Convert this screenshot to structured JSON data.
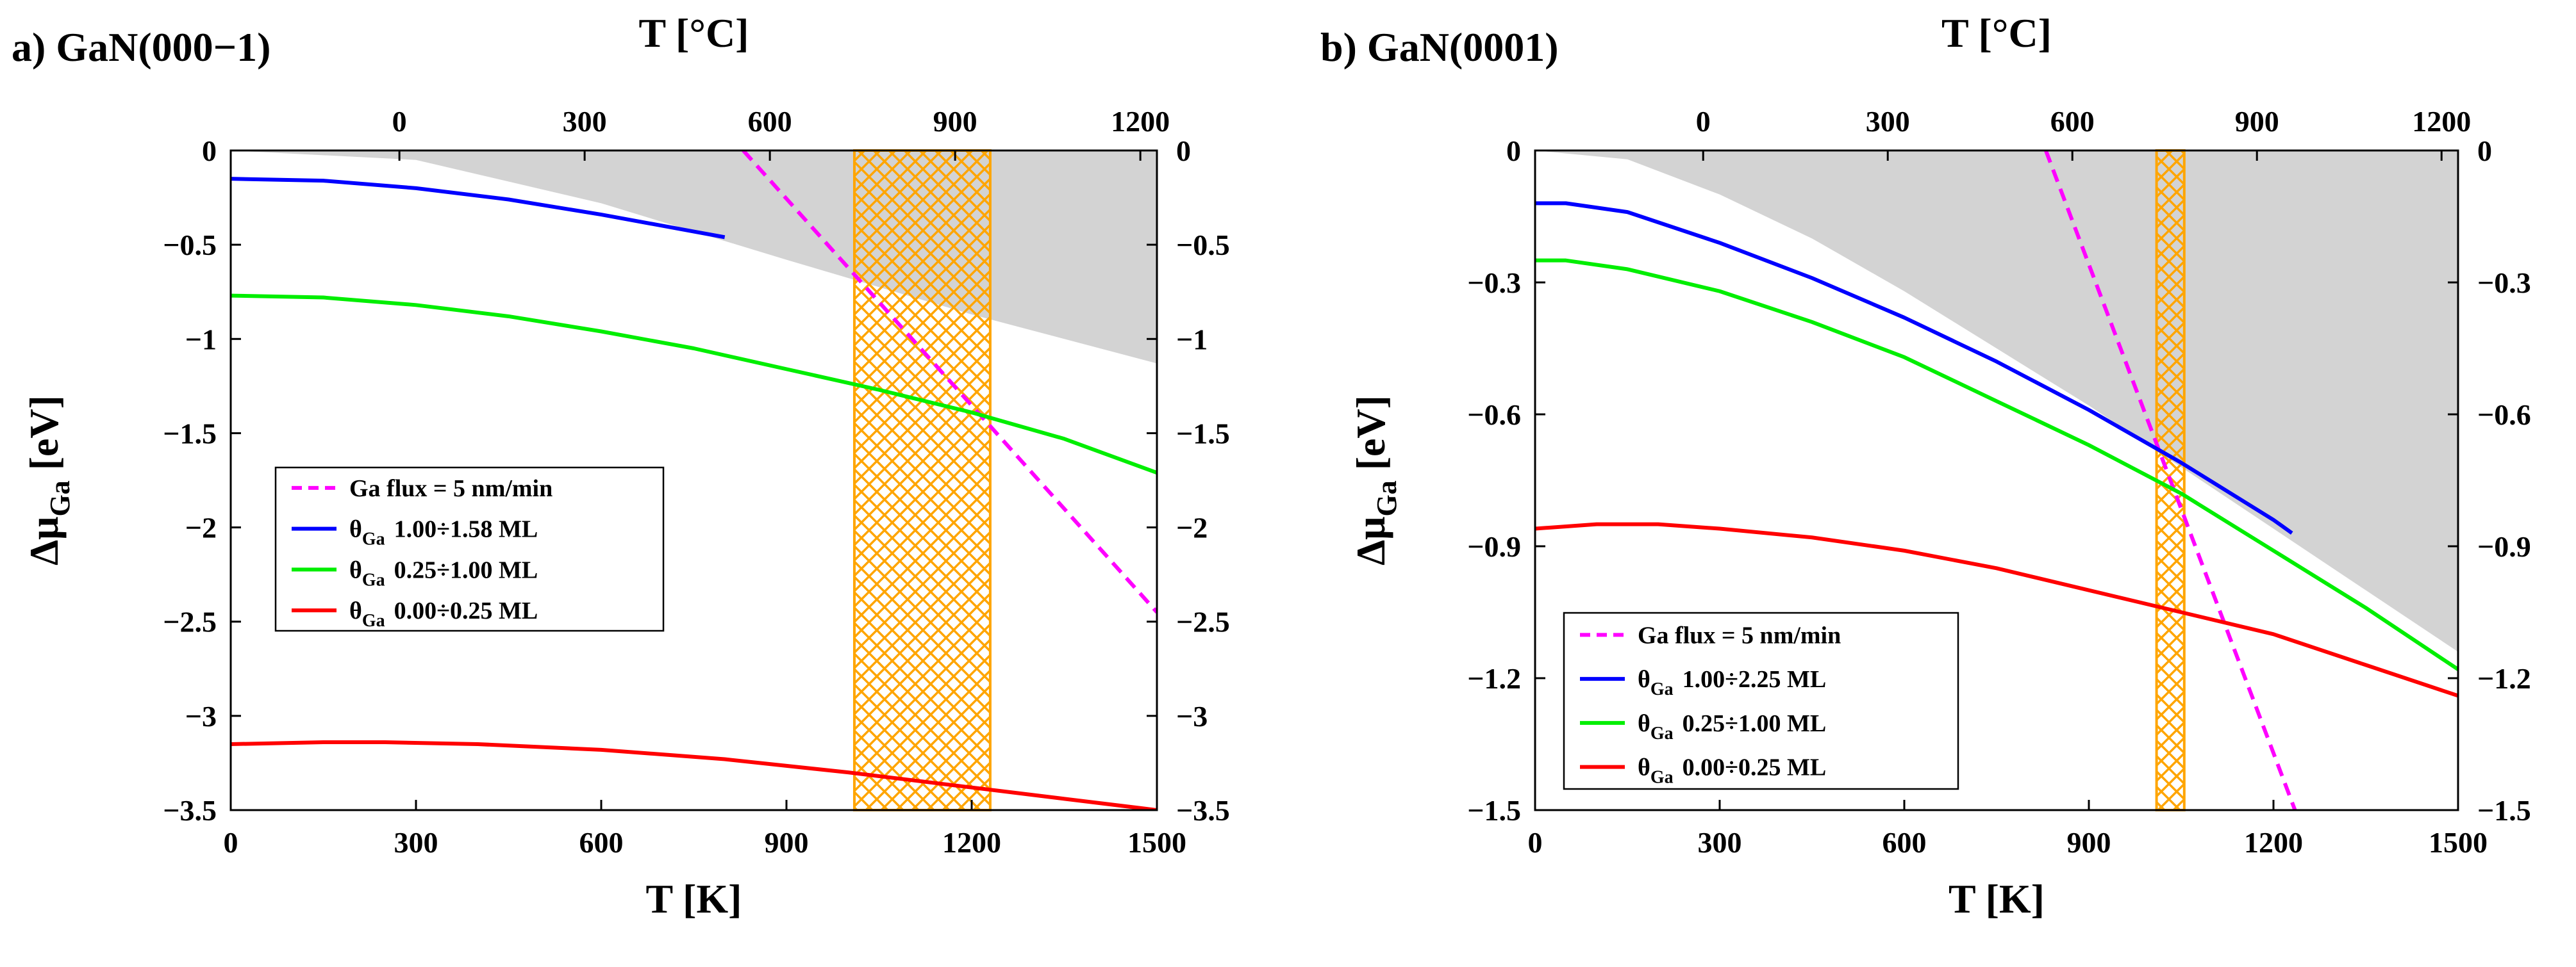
{
  "chart_data": [
    {
      "type": "line",
      "panel_label": "a) GaN(000−1)",
      "xlabel_bottom": "T [K]",
      "xlabel_top": "T [°C]",
      "ylabel_main": "Δμ",
      "ylabel_sub": "Ga",
      "ylabel_unit": " [eV]",
      "xlim": [
        0,
        1500
      ],
      "ylim": [
        -3.5,
        0
      ],
      "x_ticks": [
        0,
        300,
        600,
        900,
        1200,
        1500
      ],
      "x_tick_labels": [
        "0",
        "300",
        "600",
        "900",
        "1200",
        "1500"
      ],
      "top_ticks_celsius": [
        0,
        300,
        600,
        900,
        1200
      ],
      "top_tick_labels": [
        "0",
        "300",
        "600",
        "900",
        "1200"
      ],
      "y_ticks": [
        0,
        -0.5,
        -1,
        -1.5,
        -2,
        -2.5,
        -3,
        -3.5
      ],
      "y_tick_labels": [
        "0",
        "−0.5",
        "−1",
        "−1.5",
        "−2",
        "−2.5",
        "−3",
        "−3.5"
      ],
      "shaded_region": {
        "color": "#d3d3d3",
        "upper": "0",
        "lower_x": [
          0,
          300,
          600,
          900,
          1200,
          1500
        ],
        "lower_y": [
          0,
          -0.05,
          -0.28,
          -0.58,
          -0.87,
          -1.13
        ]
      },
      "hatched_band": {
        "x_range": [
          1010,
          1230
        ],
        "color": "#ffa500"
      },
      "legend": {
        "position": "lower-left"
      },
      "series": [
        {
          "name": "Ga flux = 5 nm/min",
          "color": "#ff00ff",
          "style": "dashed",
          "x": [
            830,
            1500
          ],
          "y": [
            0,
            -2.45
          ]
        },
        {
          "name": "1.00÷1.58 ML",
          "legend_prefix": "θ",
          "legend_sub": "Ga",
          "color": "#0000ff",
          "style": "solid",
          "x": [
            0,
            150,
            300,
            450,
            600,
            750,
            800
          ],
          "y": [
            -0.15,
            -0.16,
            -0.2,
            -0.26,
            -0.34,
            -0.43,
            -0.46
          ]
        },
        {
          "name": "0.25÷1.00 ML",
          "legend_prefix": "θ",
          "legend_sub": "Ga",
          "color": "#00ee00",
          "style": "solid",
          "x": [
            0,
            150,
            300,
            450,
            600,
            750,
            900,
            1050,
            1200,
            1350,
            1500
          ],
          "y": [
            -0.77,
            -0.78,
            -0.82,
            -0.88,
            -0.96,
            -1.05,
            -1.16,
            -1.27,
            -1.39,
            -1.53,
            -1.71
          ]
        },
        {
          "name": "0.00÷0.25 ML",
          "legend_prefix": "θ",
          "legend_sub": "Ga",
          "color": "#ff0000",
          "style": "solid",
          "x": [
            0,
            150,
            250,
            400,
            600,
            800,
            1000,
            1200,
            1350,
            1500
          ],
          "y": [
            -3.15,
            -3.14,
            -3.14,
            -3.15,
            -3.18,
            -3.23,
            -3.3,
            -3.38,
            -3.44,
            -3.5
          ]
        }
      ]
    },
    {
      "type": "line",
      "panel_label": "b) GaN(0001)",
      "xlabel_bottom": "T [K]",
      "xlabel_top": "T [°C]",
      "ylabel_main": "Δμ",
      "ylabel_sub": "Ga",
      "ylabel_unit": " [eV]",
      "xlim": [
        0,
        1500
      ],
      "ylim": [
        -1.5,
        0
      ],
      "x_ticks": [
        0,
        300,
        600,
        900,
        1200,
        1500
      ],
      "x_tick_labels": [
        "0",
        "300",
        "600",
        "900",
        "1200",
        "1500"
      ],
      "top_ticks_celsius": [
        0,
        300,
        600,
        900,
        1200
      ],
      "top_tick_labels": [
        "0",
        "300",
        "600",
        "900",
        "1200"
      ],
      "y_ticks": [
        0,
        -0.3,
        -0.6,
        -0.9,
        -1.2,
        -1.5
      ],
      "y_tick_labels": [
        "0",
        "−0.3",
        "−0.6",
        "−0.9",
        "−1.2",
        "−1.5"
      ],
      "shaded_region": {
        "color": "#d3d3d3",
        "upper": "0",
        "lower_x": [
          0,
          150,
          300,
          450,
          600,
          750,
          900,
          1050,
          1200,
          1350,
          1500
        ],
        "lower_y": [
          0,
          -0.02,
          -0.1,
          -0.2,
          -0.32,
          -0.45,
          -0.58,
          -0.72,
          -0.86,
          -1.0,
          -1.14
        ]
      },
      "hatched_band": {
        "x_range": [
          1010,
          1055
        ],
        "color": "#ffa500"
      },
      "legend": {
        "position": "lower-left"
      },
      "series": [
        {
          "name": "Ga flux = 5 nm/min",
          "color": "#ff00ff",
          "style": "dashed",
          "x": [
            830,
            1235
          ],
          "y": [
            0,
            -1.5
          ]
        },
        {
          "name": "1.00÷2.25 ML",
          "legend_prefix": "θ",
          "legend_sub": "Ga",
          "color": "#0000ff",
          "style": "solid",
          "x": [
            0,
            50,
            150,
            300,
            450,
            600,
            750,
            900,
            1050,
            1200,
            1230
          ],
          "y": [
            -0.12,
            -0.12,
            -0.14,
            -0.21,
            -0.29,
            -0.38,
            -0.48,
            -0.59,
            -0.71,
            -0.84,
            -0.87
          ]
        },
        {
          "name": "0.25÷1.00 ML",
          "legend_prefix": "θ",
          "legend_sub": "Ga",
          "color": "#00ee00",
          "style": "solid",
          "x": [
            0,
            50,
            150,
            300,
            450,
            600,
            750,
            900,
            1050,
            1200,
            1350,
            1500
          ],
          "y": [
            -0.25,
            -0.25,
            -0.27,
            -0.32,
            -0.39,
            -0.47,
            -0.57,
            -0.67,
            -0.78,
            -0.91,
            -1.04,
            -1.18
          ]
        },
        {
          "name": "0.00÷0.25 ML",
          "legend_prefix": "θ",
          "legend_sub": "Ga",
          "color": "#ff0000",
          "style": "solid",
          "x": [
            0,
            100,
            200,
            300,
            450,
            600,
            750,
            900,
            1050,
            1200,
            1350,
            1500
          ],
          "y": [
            -0.86,
            -0.85,
            -0.85,
            -0.86,
            -0.88,
            -0.91,
            -0.95,
            -1.0,
            -1.05,
            -1.1,
            -1.17,
            -1.24
          ]
        }
      ]
    }
  ]
}
